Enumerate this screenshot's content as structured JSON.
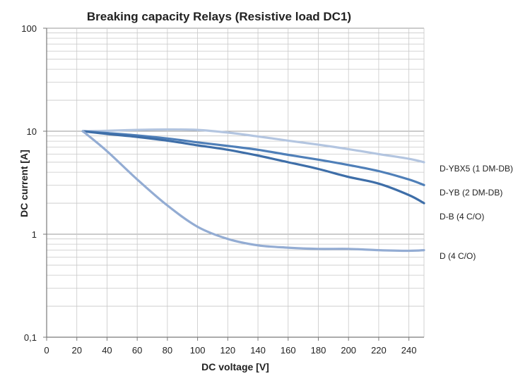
{
  "chart_data": {
    "type": "line",
    "title": "Breaking capacity Relays (Resistive load DC1)",
    "xlabel": "DC voltage [V]",
    "ylabel": "DC current [A]",
    "xlim": [
      0,
      250
    ],
    "xticks": [
      0,
      20,
      40,
      60,
      80,
      100,
      120,
      140,
      160,
      180,
      200,
      220,
      240
    ],
    "yscale": "log",
    "ylim": [
      0.1,
      100
    ],
    "ytick_labels": [
      "0,1",
      "1",
      "10",
      "100"
    ],
    "grid": true,
    "legend_position": "right",
    "series": [
      {
        "name": "D-YBX5 (1 DM-DB)",
        "color": "#b3c5e0",
        "x": [
          24,
          40,
          60,
          80,
          100,
          120,
          140,
          160,
          180,
          200,
          220,
          240,
          250
        ],
        "y": [
          10,
          10.1,
          10.3,
          10.4,
          10.3,
          9.7,
          8.9,
          8.1,
          7.4,
          6.7,
          6.0,
          5.4,
          5.0
        ]
      },
      {
        "name": "D-YB (2 DM-DB)",
        "color": "#4f7fb8",
        "x": [
          24,
          40,
          60,
          80,
          100,
          120,
          140,
          160,
          180,
          200,
          220,
          240,
          250
        ],
        "y": [
          10,
          9.6,
          9.1,
          8.5,
          7.8,
          7.2,
          6.6,
          5.9,
          5.3,
          4.7,
          4.1,
          3.4,
          3.0
        ]
      },
      {
        "name": "D-B (4 C/O)",
        "color": "#3e6ea8",
        "x": [
          24,
          40,
          60,
          80,
          100,
          120,
          140,
          160,
          180,
          200,
          220,
          240,
          250
        ],
        "y": [
          10,
          9.4,
          8.8,
          8.1,
          7.3,
          6.6,
          5.8,
          5.0,
          4.3,
          3.6,
          3.1,
          2.4,
          2.0
        ]
      },
      {
        "name": "D (4 C/O)",
        "color": "#93acd3",
        "x": [
          24,
          40,
          60,
          80,
          100,
          120,
          140,
          160,
          180,
          200,
          220,
          240,
          250
        ],
        "y": [
          10,
          6.4,
          3.4,
          1.9,
          1.18,
          0.9,
          0.78,
          0.74,
          0.72,
          0.72,
          0.7,
          0.69,
          0.7
        ]
      }
    ]
  }
}
